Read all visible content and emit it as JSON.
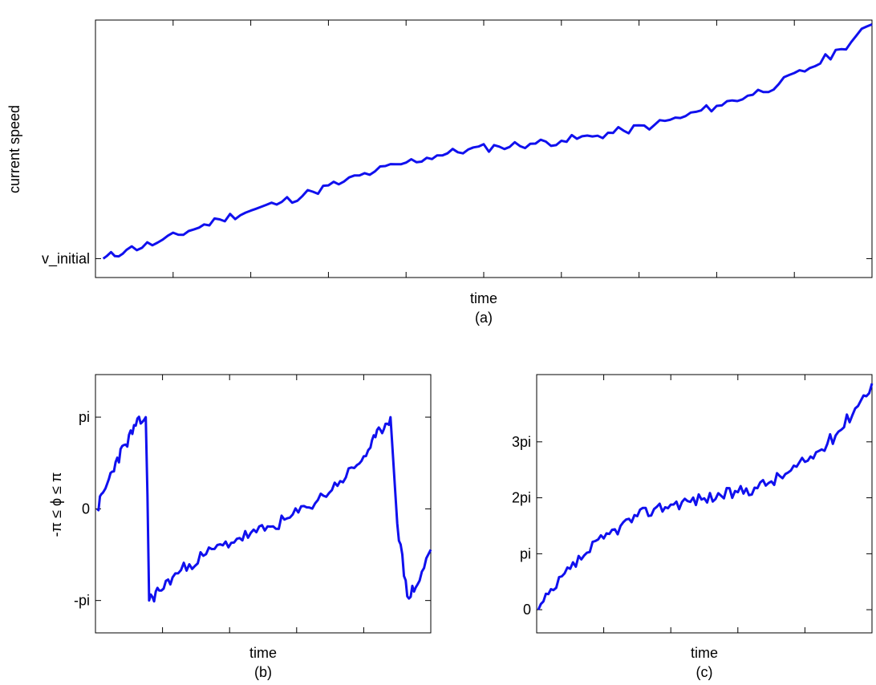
{
  "chart_data": [
    {
      "type": "line",
      "panel_label": "(a)",
      "xlabel": "time",
      "ylabel": "current speed",
      "y_tick_labels": [
        {
          "value": 0,
          "label": "v_initial"
        }
      ],
      "ylim": [
        -0.65,
        8.2
      ],
      "xlim": [
        0,
        10
      ],
      "x_tick_count": 9,
      "grid": false,
      "line_color": "#1010ee",
      "series": [
        {
          "x": [
            0.1,
            0.4,
            0.8,
            1.2,
            1.6,
            2.0,
            2.4,
            2.8,
            3.2,
            3.6,
            4.0,
            4.4,
            4.8,
            5.2,
            5.6,
            6.0,
            6.4,
            6.8,
            7.2,
            7.6,
            8.0,
            8.4,
            8.8,
            9.2,
            9.6,
            10.0
          ],
          "y": [
            0.0,
            0.3,
            0.55,
            0.95,
            1.35,
            1.65,
            1.95,
            2.3,
            2.65,
            3.0,
            3.3,
            3.55,
            3.75,
            3.85,
            3.95,
            4.05,
            4.2,
            4.4,
            4.6,
            4.9,
            5.25,
            5.6,
            6.0,
            6.55,
            7.2,
            8.05
          ]
        }
      ]
    },
    {
      "type": "line",
      "panel_label": "(b)",
      "xlabel": "time",
      "ylabel": "-π ≤ ϕ ≤ π",
      "y_tick_labels": [
        {
          "value": -3.14159,
          "label": "-pi"
        },
        {
          "value": 0,
          "label": "0"
        },
        {
          "value": 3.14159,
          "label": "pi"
        }
      ],
      "ylim": [
        -4.25,
        4.6
      ],
      "xlim": [
        0,
        10
      ],
      "x_tick_count": 4,
      "grid": false,
      "line_color": "#1010ee",
      "series": [
        {
          "x": [
            0.05,
            0.3,
            0.6,
            0.9,
            1.2,
            1.5,
            1.55,
            1.6,
            1.9,
            2.3,
            2.8,
            3.3,
            3.8,
            4.3,
            4.8,
            5.3,
            5.8,
            6.3,
            6.8,
            7.3,
            7.8,
            8.2,
            8.5,
            8.8,
            9.0,
            9.3,
            9.6,
            10.0
          ],
          "y": [
            0.0,
            0.7,
            1.6,
            2.2,
            2.85,
            3.14,
            0.5,
            -3.14,
            -2.8,
            -2.35,
            -1.9,
            -1.55,
            -1.25,
            -1.0,
            -0.8,
            -0.6,
            -0.3,
            0.05,
            0.45,
            0.95,
            1.5,
            2.1,
            2.7,
            3.14,
            -0.5,
            -3.0,
            -2.6,
            -1.4
          ]
        }
      ]
    },
    {
      "type": "line",
      "panel_label": "(c)",
      "xlabel": "time",
      "ylabel": "",
      "y_tick_labels": [
        {
          "value": 0,
          "label": "0"
        },
        {
          "value": 3.14159,
          "label": "pi"
        },
        {
          "value": 6.28318,
          "label": "2pi"
        },
        {
          "value": 9.42478,
          "label": "3pi"
        }
      ],
      "ylim": [
        -1.3,
        13.2
      ],
      "xlim": [
        0,
        10
      ],
      "x_tick_count": 4,
      "grid": false,
      "line_color": "#1010ee",
      "series": [
        {
          "x": [
            0.05,
            0.5,
            1.0,
            1.5,
            2.0,
            2.5,
            3.0,
            3.5,
            4.0,
            4.5,
            5.0,
            5.5,
            6.0,
            6.5,
            7.0,
            7.5,
            8.0,
            8.5,
            9.0,
            9.5,
            10.0
          ],
          "y": [
            0.0,
            1.1,
            2.3,
            3.2,
            4.0,
            4.7,
            5.25,
            5.65,
            5.9,
            6.1,
            6.25,
            6.4,
            6.6,
            6.85,
            7.2,
            7.7,
            8.3,
            9.0,
            10.0,
            11.3,
            12.7
          ]
        }
      ]
    }
  ]
}
